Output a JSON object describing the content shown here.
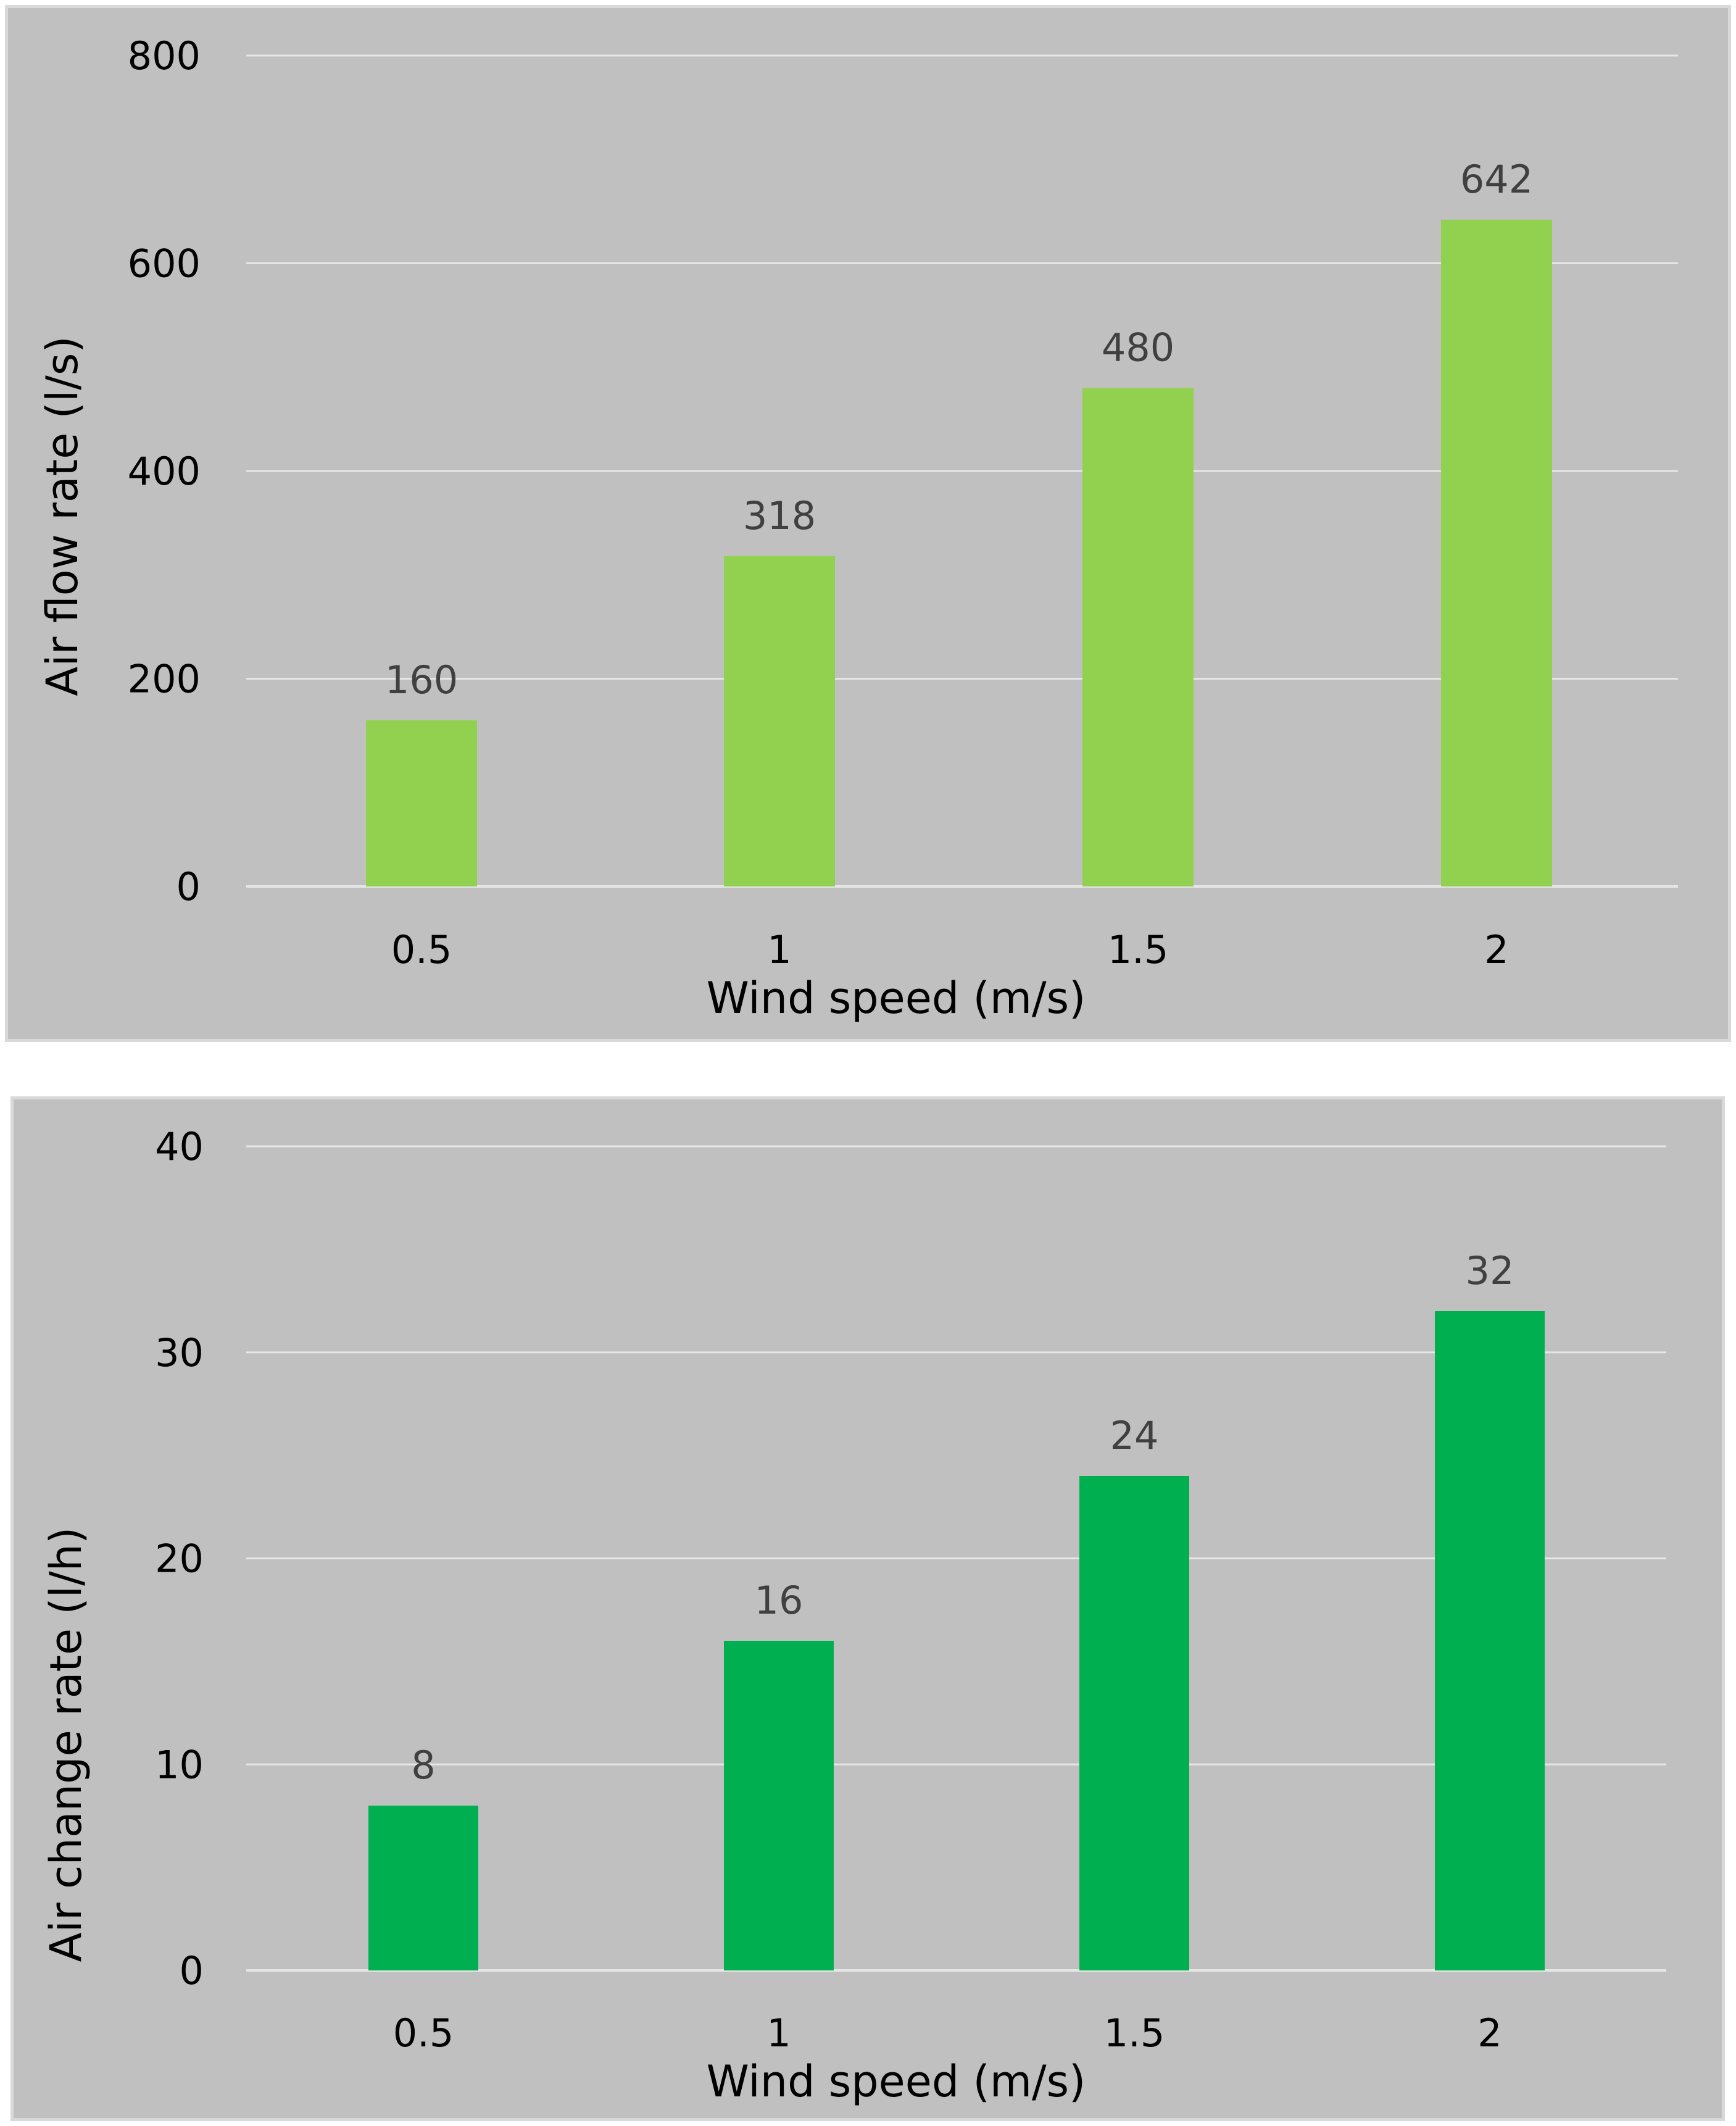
{
  "charts": [
    {
      "type": "bar",
      "categories": [
        "0.5",
        "1",
        "1.5",
        "2"
      ],
      "values": [
        160,
        318,
        480,
        642
      ],
      "data_labels": [
        "160",
        "318",
        "480",
        "642"
      ],
      "ylim": [
        0,
        800
      ],
      "yticks": [
        "0",
        "200",
        "400",
        "600",
        "800"
      ],
      "xlabel": "Wind speed (m/s)",
      "ylabel": "Air flow rate (l/s)",
      "bar_color": "#92d050",
      "grid": true
    },
    {
      "type": "bar",
      "categories": [
        "0.5",
        "1",
        "1.5",
        "2"
      ],
      "values": [
        8,
        16,
        24,
        32
      ],
      "data_labels": [
        "8",
        "16",
        "24",
        "32"
      ],
      "ylim": [
        0,
        40
      ],
      "yticks": [
        "0",
        "10",
        "20",
        "30",
        "40"
      ],
      "xlabel": "Wind speed (m/s)",
      "ylabel": "Air change rate (l/h)",
      "bar_color": "#00b050",
      "grid": true
    }
  ],
  "chart_data": [
    {
      "type": "bar",
      "title": "",
      "categories": [
        "0.5",
        "1",
        "1.5",
        "2"
      ],
      "values": [
        160,
        318,
        480,
        642
      ],
      "xlabel": "Wind speed (m/s)",
      "ylabel": "Air flow rate (l/s)",
      "ylim": [
        0,
        800
      ]
    },
    {
      "type": "bar",
      "title": "",
      "categories": [
        "0.5",
        "1",
        "1.5",
        "2"
      ],
      "values": [
        8,
        16,
        24,
        32
      ],
      "xlabel": "Wind speed (m/s)",
      "ylabel": "Air change rate (l/h)",
      "ylim": [
        0,
        40
      ]
    }
  ]
}
